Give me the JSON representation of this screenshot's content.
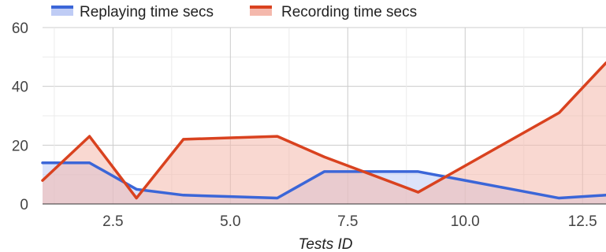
{
  "chart_data": {
    "type": "area",
    "title": "",
    "xlabel": "Tests ID",
    "ylabel": "",
    "xlim": [
      1,
      13
    ],
    "ylim": [
      0,
      60
    ],
    "grid": true,
    "legend_position": "top",
    "x_ticks": [
      2.5,
      5.0,
      7.5,
      10.0,
      12.5
    ],
    "x_tick_labels": [
      "2.5",
      "5.0",
      "7.5",
      "10.0",
      "12.5"
    ],
    "y_ticks": [
      0,
      20,
      40,
      60
    ],
    "y_tick_labels": [
      "0",
      "20",
      "40",
      "60"
    ],
    "series": [
      {
        "name": "Replaying time secs",
        "color": "#3b66d8",
        "fill": "#bfccf5",
        "x": [
          1,
          2,
          3,
          4,
          5,
          6,
          7,
          8,
          9,
          10,
          11,
          12,
          13
        ],
        "values": [
          14,
          14,
          5,
          3,
          2.5,
          2,
          11,
          11,
          11,
          8,
          5,
          2,
          3
        ]
      },
      {
        "name": "Recording time secs",
        "color": "#d9421f",
        "fill": "#f4b8ac",
        "x": [
          1,
          2,
          3,
          4,
          5,
          6,
          7,
          8,
          9,
          10,
          11,
          12,
          13
        ],
        "values": [
          8,
          23,
          2,
          22,
          22.5,
          23,
          16,
          10,
          4,
          13,
          22,
          31,
          48
        ]
      }
    ]
  }
}
